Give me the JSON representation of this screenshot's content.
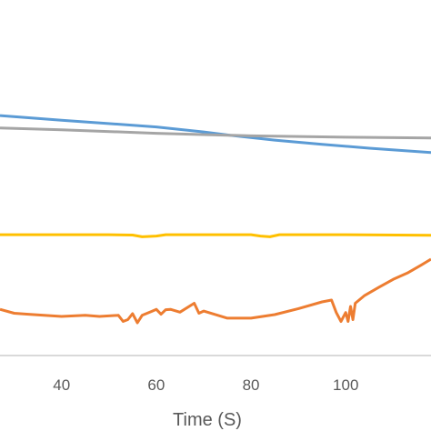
{
  "chart_data": {
    "type": "line",
    "xlabel": "Time (S)",
    "xlim": [
      27,
      118
    ],
    "ylim": [
      0,
      100
    ],
    "grid": false,
    "x_ticks": [
      40,
      60,
      80,
      100
    ],
    "series": [
      {
        "color": "#5B9BD5",
        "points": [
          [
            27,
            67.5
          ],
          [
            40,
            66.2
          ],
          [
            60,
            64.3
          ],
          [
            70,
            62.9
          ],
          [
            76,
            61.9
          ],
          [
            85,
            60.6
          ],
          [
            95,
            59.4
          ],
          [
            105,
            58.3
          ],
          [
            118,
            57.1
          ]
        ]
      },
      {
        "color": "#A5A5A5",
        "points": [
          [
            27,
            64.0
          ],
          [
            40,
            63.5
          ],
          [
            60,
            62.5
          ],
          [
            80,
            61.8
          ],
          [
            100,
            61.4
          ],
          [
            118,
            61.2
          ]
        ]
      },
      {
        "color": "#FFC000",
        "points": [
          [
            27,
            34.0
          ],
          [
            50,
            34.0
          ],
          [
            55,
            33.9
          ],
          [
            57,
            33.4
          ],
          [
            60,
            33.6
          ],
          [
            62,
            34.0
          ],
          [
            80,
            34.0
          ],
          [
            82,
            33.6
          ],
          [
            84,
            33.4
          ],
          [
            86,
            34.0
          ],
          [
            100,
            34.0
          ],
          [
            118,
            33.8
          ]
        ]
      },
      {
        "color": "#ED7D31",
        "points": [
          [
            27,
            13.0
          ],
          [
            30,
            11.9
          ],
          [
            33,
            11.6
          ],
          [
            40,
            11.0
          ],
          [
            45,
            11.3
          ],
          [
            48,
            11.0
          ],
          [
            52,
            11.3
          ],
          [
            53,
            9.6
          ],
          [
            54,
            10.1
          ],
          [
            55,
            11.8
          ],
          [
            56,
            9.2
          ],
          [
            57,
            11.3
          ],
          [
            59,
            12.4
          ],
          [
            60,
            13.0
          ],
          [
            61,
            11.6
          ],
          [
            62,
            12.9
          ],
          [
            63,
            13.0
          ],
          [
            65,
            12.2
          ],
          [
            68,
            14.7
          ],
          [
            69,
            11.9
          ],
          [
            70,
            12.5
          ],
          [
            75,
            10.5
          ],
          [
            80,
            10.5
          ],
          [
            85,
            11.5
          ],
          [
            90,
            13.2
          ],
          [
            95,
            15.1
          ],
          [
            97,
            15.6
          ],
          [
            98,
            12.1
          ],
          [
            99,
            9.6
          ],
          [
            100,
            12.1
          ],
          [
            100.5,
            9.6
          ],
          [
            101,
            13.8
          ],
          [
            101.5,
            10.1
          ],
          [
            102,
            14.7
          ],
          [
            104,
            16.9
          ],
          [
            107,
            19.2
          ],
          [
            110,
            21.4
          ],
          [
            113,
            23.2
          ],
          [
            116,
            25.5
          ],
          [
            118,
            27.1
          ]
        ]
      }
    ]
  }
}
